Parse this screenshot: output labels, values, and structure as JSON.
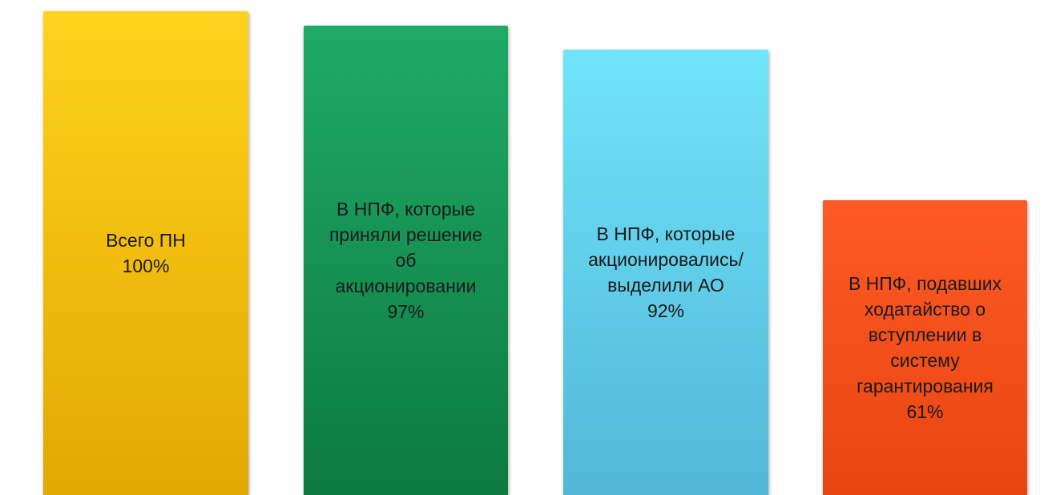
{
  "chart_data": {
    "type": "bar",
    "categories": [
      "Всего ПН",
      "В НПФ, которые\nприняли решение\nоб\nакционировании",
      "В НПФ, которые\nакционировались/\nвыделили АО",
      "В НПФ, подавших\nходатайство о\nвступлении в\nсистему\nгарантирования"
    ],
    "values": [
      100,
      97,
      92,
      61
    ],
    "value_labels": [
      "100%",
      "97%",
      "92%",
      "61%"
    ],
    "unit": "%",
    "ylim": [
      0,
      100
    ],
    "grid": false,
    "legend": "none",
    "colors": [
      {
        "top": "#ffd21c",
        "bottom": "#e2a803"
      },
      {
        "top": "#1faa68",
        "bottom": "#0d7a40"
      },
      {
        "top": "#6fe4fb",
        "bottom": "#53b7d5"
      },
      {
        "top": "#ff5a26",
        "bottom": "#e84510"
      }
    ]
  }
}
